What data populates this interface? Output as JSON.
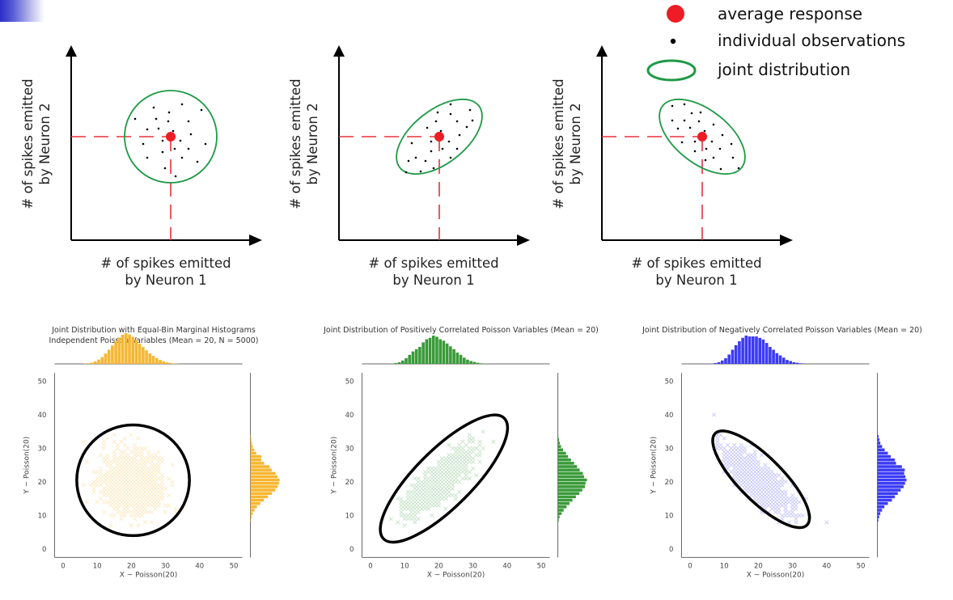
{
  "legend": {
    "items": [
      {
        "symbol": "red-dot",
        "label": "average response"
      },
      {
        "symbol": "black-dot",
        "label": "individual observations"
      },
      {
        "symbol": "green-ellipse",
        "label": "joint distribution"
      }
    ]
  },
  "colors": {
    "mean": "#ee1c24",
    "mean_guide": "#e8323a",
    "ellipse": "#1e9a46",
    "observation": "#000000",
    "corner_accent": "#2a2ec8",
    "independent": "#f7b733",
    "positive": "#3a9b3a",
    "negative": "#3b3bf5",
    "confidence_ellipse": "#000000"
  },
  "schematics": [
    {
      "correlation": "none",
      "x_label_line1": "# of spikes emitted",
      "x_label_line2": "by Neuron 1",
      "y_label_line1": "# of spikes emitted",
      "y_label_line2": "by Neuron 2",
      "mean": [
        0.53,
        0.52
      ],
      "ellipse": {
        "rx": 0.245,
        "ry": 0.36,
        "angle_deg": 0
      },
      "observations": [
        [
          190,
          133
        ],
        [
          225,
          129
        ],
        [
          249,
          136
        ],
        [
          209,
          139
        ],
        [
          167,
          147
        ],
        [
          193,
          147
        ],
        [
          208,
          150
        ],
        [
          233,
          150
        ],
        [
          182,
          160
        ],
        [
          196,
          159
        ],
        [
          214,
          162
        ],
        [
          236,
          166
        ],
        [
          177,
          178
        ],
        [
          201,
          174
        ],
        [
          223,
          174
        ],
        [
          254,
          178
        ],
        [
          201,
          188
        ],
        [
          216,
          184
        ],
        [
          233,
          184
        ],
        [
          182,
          195
        ],
        [
          225,
          195
        ],
        [
          244,
          200
        ],
        [
          204,
          208
        ],
        [
          217,
          218
        ]
      ]
    },
    {
      "correlation": "positive",
      "x_label_line1": "# of spikes emitted",
      "x_label_line2": "by Neuron 1",
      "y_label_line1": "# of spikes emitted",
      "y_label_line2": "by Neuron 2",
      "observations": [
        [
          557,
          129
        ],
        [
          541,
          139
        ],
        [
          557,
          141
        ],
        [
          581,
          136
        ],
        [
          539,
          150
        ],
        [
          565,
          150
        ],
        [
          584,
          149
        ],
        [
          528,
          158
        ],
        [
          545,
          162
        ],
        [
          577,
          157
        ],
        [
          568,
          167
        ],
        [
          533,
          175
        ],
        [
          555,
          175
        ],
        [
          509,
          177
        ],
        [
          533,
          187
        ],
        [
          547,
          184
        ],
        [
          565,
          184
        ],
        [
          514,
          195
        ],
        [
          505,
          199
        ],
        [
          526,
          199
        ],
        [
          557,
          195
        ],
        [
          536,
          208
        ],
        [
          520,
          212
        ],
        [
          502,
          213
        ]
      ]
    },
    {
      "correlation": "negative",
      "x_label_line1": "# of spikes emitted",
      "x_label_line2": "by Neuron 1",
      "y_label_line1": "# of spikes emitted",
      "y_label_line2": "by Neuron 2",
      "observations": [
        [
          831,
          131
        ],
        [
          846,
          129
        ],
        [
          855,
          140
        ],
        [
          866,
          139
        ],
        [
          831,
          149
        ],
        [
          846,
          149
        ],
        [
          864,
          150
        ],
        [
          838,
          159
        ],
        [
          853,
          158
        ],
        [
          882,
          154
        ],
        [
          871,
          162
        ],
        [
          893,
          167
        ],
        [
          843,
          176
        ],
        [
          859,
          175
        ],
        [
          880,
          175
        ],
        [
          904,
          178
        ],
        [
          859,
          187
        ],
        [
          873,
          184
        ],
        [
          890,
          184
        ],
        [
          872,
          198
        ],
        [
          882,
          195
        ],
        [
          906,
          195
        ],
        [
          891,
          209
        ],
        [
          913,
          208
        ]
      ]
    }
  ],
  "chart_data": [
    {
      "type": "scatter",
      "title_line1": "Joint Distribution with Equal-Bin Marginal Histograms",
      "title_line2": "Independent Poisson Variables (Mean = 20, N = 5000)",
      "xlabel": "X ~ Poisson(20)",
      "ylabel": "Y ~ Poisson(20)",
      "xlim": [
        -2.5,
        52.5
      ],
      "ylim": [
        -2.5,
        52.5
      ],
      "xticks": [
        0,
        10,
        20,
        30,
        40,
        50
      ],
      "yticks": [
        0,
        10,
        20,
        30,
        40,
        50
      ],
      "color_key": "independent",
      "n": 5000,
      "mean": [
        20,
        20
      ],
      "correlation": 0.0,
      "confidence_ellipse": {
        "center": [
          20.5,
          20.5
        ],
        "semi_axis_major": 16.5,
        "semi_axis_minor": 16.5,
        "angle_deg": 0
      },
      "scatter_extent": {
        "x": [
          6,
          35
        ],
        "y": [
          6,
          35
        ]
      },
      "marginal_x": {
        "bins_start": 6,
        "bin_width": 1,
        "heights": [
          0.01,
          0.02,
          0.04,
          0.08,
          0.14,
          0.22,
          0.34,
          0.46,
          0.6,
          0.74,
          0.86,
          0.95,
          1.0,
          0.96,
          0.88,
          0.78,
          0.66,
          0.55,
          0.44,
          0.34,
          0.26,
          0.19,
          0.13,
          0.08,
          0.05,
          0.03,
          0.015,
          0.008
        ]
      },
      "marginal_y": {
        "bins_start": 8,
        "bin_width": 1,
        "heights": [
          0.02,
          0.04,
          0.08,
          0.14,
          0.22,
          0.34,
          0.46,
          0.6,
          0.74,
          0.86,
          0.93,
          0.98,
          1.0,
          0.93,
          0.86,
          0.73,
          0.66,
          0.47,
          0.37,
          0.37,
          0.2,
          0.13,
          0.08,
          0.05,
          0.03,
          0.015
        ]
      }
    },
    {
      "type": "scatter",
      "title_line1": "Joint Distribution of Positively Correlated Poisson Variables (Mean = 20)",
      "title_line2": "",
      "xlabel": "X ~ Poisson(20)",
      "ylabel": "Y ~ Poisson(20)",
      "xlim": [
        -2.5,
        52.5
      ],
      "ylim": [
        -2.5,
        52.5
      ],
      "xticks": [
        0,
        10,
        20,
        30,
        40,
        50
      ],
      "yticks": [
        0,
        10,
        20,
        30,
        40,
        50
      ],
      "color_key": "positive",
      "mean": [
        20,
        20
      ],
      "correlation": 0.8,
      "confidence_ellipse": {
        "center": [
          21.5,
          21
        ],
        "semi_axis_major": 25,
        "semi_axis_minor": 8.5,
        "angle_deg": 45
      },
      "scatter_extent": {
        "x": [
          6,
          36
        ],
        "y": [
          6,
          38
        ]
      },
      "marginal_x": {
        "bins_start": 6,
        "bin_width": 1,
        "heights": [
          0.01,
          0.03,
          0.06,
          0.12,
          0.2,
          0.32,
          0.44,
          0.52,
          0.6,
          0.76,
          0.87,
          0.92,
          1.0,
          0.96,
          0.87,
          0.82,
          0.72,
          0.62,
          0.52,
          0.4,
          0.32,
          0.22,
          0.15,
          0.1,
          0.07,
          0.04,
          0.02,
          0.01
        ]
      },
      "marginal_y": {
        "bins_start": 8,
        "bin_width": 1,
        "heights": [
          0.03,
          0.06,
          0.13,
          0.2,
          0.3,
          0.4,
          0.5,
          0.62,
          0.74,
          0.84,
          0.93,
          0.95,
          1.0,
          0.9,
          0.86,
          0.75,
          0.66,
          0.56,
          0.45,
          0.35,
          0.28,
          0.18,
          0.11,
          0.07,
          0.04,
          0.02
        ]
      }
    },
    {
      "type": "scatter",
      "title_line1": "Joint Distribution of Negatively Correlated Poisson Variables (Mean = 20)",
      "title_line2": "",
      "xlabel": "X ~ Poisson(20)",
      "ylabel": "Y ~ Poisson(20)",
      "xlim": [
        -2.5,
        52.5
      ],
      "ylim": [
        -2.5,
        52.5
      ],
      "xticks": [
        0,
        10,
        20,
        30,
        40,
        50
      ],
      "yticks": [
        0,
        10,
        20,
        30,
        40,
        50
      ],
      "color_key": "negative",
      "mean": [
        20,
        20
      ],
      "correlation": -0.8,
      "confidence_ellipse": {
        "center": [
          20.8,
          20.8
        ],
        "semi_axis_major": 19,
        "semi_axis_minor": 6.5,
        "angle_deg": -45
      },
      "scatter_extent": {
        "x": [
          7,
          35
        ],
        "y": [
          7,
          36
        ]
      },
      "outliers": [
        [
          7,
          40
        ],
        [
          40,
          8
        ],
        [
          35,
          9.5
        ],
        [
          34,
          15
        ]
      ],
      "marginal_x": {
        "bins_start": 6,
        "bin_width": 1,
        "heights": [
          0.01,
          0.03,
          0.06,
          0.12,
          0.2,
          0.33,
          0.5,
          0.66,
          0.8,
          0.92,
          1.0,
          0.97,
          0.97,
          0.97,
          0.92,
          0.86,
          0.74,
          0.6,
          0.5,
          0.38,
          0.3,
          0.22,
          0.14,
          0.1,
          0.06,
          0.04,
          0.02,
          0.01
        ]
      },
      "marginal_y": {
        "bins_start": 8,
        "bin_width": 1,
        "heights": [
          0.03,
          0.06,
          0.1,
          0.16,
          0.24,
          0.36,
          0.5,
          0.6,
          0.7,
          0.8,
          0.9,
          0.95,
          1.0,
          0.96,
          0.92,
          0.94,
          0.84,
          0.64,
          0.6,
          0.46,
          0.36,
          0.25,
          0.16,
          0.1,
          0.07,
          0.04
        ]
      }
    }
  ]
}
